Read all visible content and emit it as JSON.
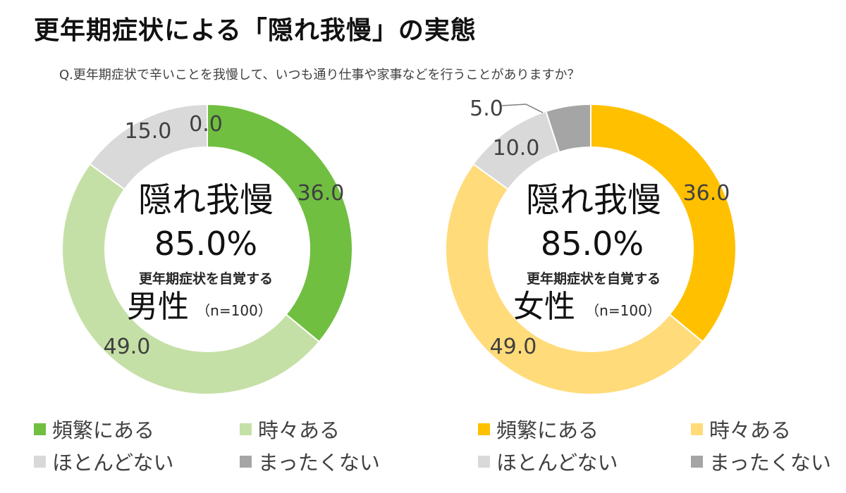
{
  "title": "更年期症状による「隠れ我慢」の実態",
  "question": "Q.更年期症状で辛いことを我慢して、いつも通り仕事や家事などを行うことがありますか？",
  "chart_data": [
    {
      "type": "pie",
      "variant": "donut",
      "categories": [
        "頻繁にある",
        "時々ある",
        "ほとんどない",
        "まったくない"
      ],
      "values": [
        36.0,
        49.0,
        15.0,
        0.0
      ],
      "value_labels": [
        "36.0",
        "49.0",
        "15.0",
        "0.0"
      ],
      "colors": [
        "#70bf41",
        "#c5e0a6",
        "#d9d9d9",
        "#a5a5a5"
      ],
      "center_text": {
        "headline": "隠れ我慢",
        "percent": "85.0%",
        "subtitle": "更年期症状を自覚する",
        "group": "男性",
        "sample": "（n=100）"
      },
      "legend_position": "bottom"
    },
    {
      "type": "pie",
      "variant": "donut",
      "categories": [
        "頻繁にある",
        "時々ある",
        "ほとんどない",
        "まったくない"
      ],
      "values": [
        36.0,
        49.0,
        10.0,
        5.0
      ],
      "value_labels": [
        "36.0",
        "49.0",
        "10.0",
        "5.0"
      ],
      "colors": [
        "#ffc000",
        "#ffdb7a",
        "#d9d9d9",
        "#a5a5a5"
      ],
      "center_text": {
        "headline": "隠れ我慢",
        "percent": "85.0%",
        "subtitle": "更年期症状を自覚する",
        "group": "女性",
        "sample": "（n=100）"
      },
      "legend_position": "bottom"
    }
  ]
}
